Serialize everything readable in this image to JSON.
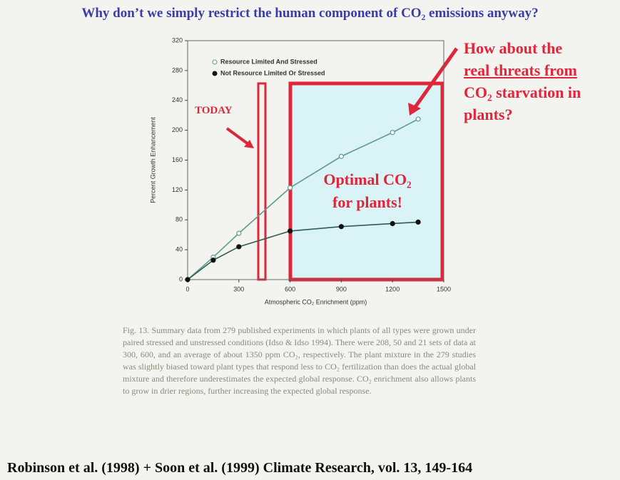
{
  "slide": {
    "title": "Why don’t we simply restrict the human component of CO₂ emissions anyway?",
    "threat_note": [
      "How about the",
      "real threats from",
      "CO₂ starvation in",
      "plants?"
    ],
    "optimal_note": [
      "Optimal CO₂",
      "for plants!"
    ],
    "today_note": "TODAY",
    "caption": "Fig. 13. Summary data from 279 published experiments in which plants of all types were grown under paired stressed and unstressed conditions (Idso & Idso 1994). There were 208, 50 and 21 sets of data at 300, 600, and an average of about 1350 ppm CO₂, respectively. The plant mixture in the 279 studies was slightly biased toward plant types that respond less to CO₂ fertilization than does the actual global mixture and therefore underestimates the expected global response. CO₂ enrichment also allows plants to grow in drier regions, further increasing the expected global response.",
    "footer": "Robinson et al. (1998) + Soon et al. (1999) Climate Research, vol. 13, 149-164"
  },
  "chart_data": {
    "type": "line",
    "x_label": "Atmospheric CO₂ Enrichment (ppm)",
    "y_label": "Percent Growth Enhancement",
    "x": [
      0,
      150,
      300,
      600,
      900,
      1200,
      1350
    ],
    "series": [
      {
        "name": "Resource Limited And Stressed",
        "color": "#5e9c8c",
        "marker": "open",
        "values": [
          0,
          30,
          62,
          123,
          165,
          197,
          215
        ]
      },
      {
        "name": "Not Resource Limited Or Stressed",
        "color": "#2f5f50",
        "marker": "filled",
        "values": [
          0,
          26,
          44,
          65,
          71,
          75,
          77
        ]
      }
    ],
    "xlim": [
      0,
      1500
    ],
    "xticks": [
      0,
      300,
      600,
      900,
      1200,
      1500
    ],
    "ylim": [
      0,
      320
    ],
    "yticks": [
      0,
      40,
      80,
      120,
      160,
      200,
      240,
      280,
      320
    ],
    "legend": "upper left"
  }
}
